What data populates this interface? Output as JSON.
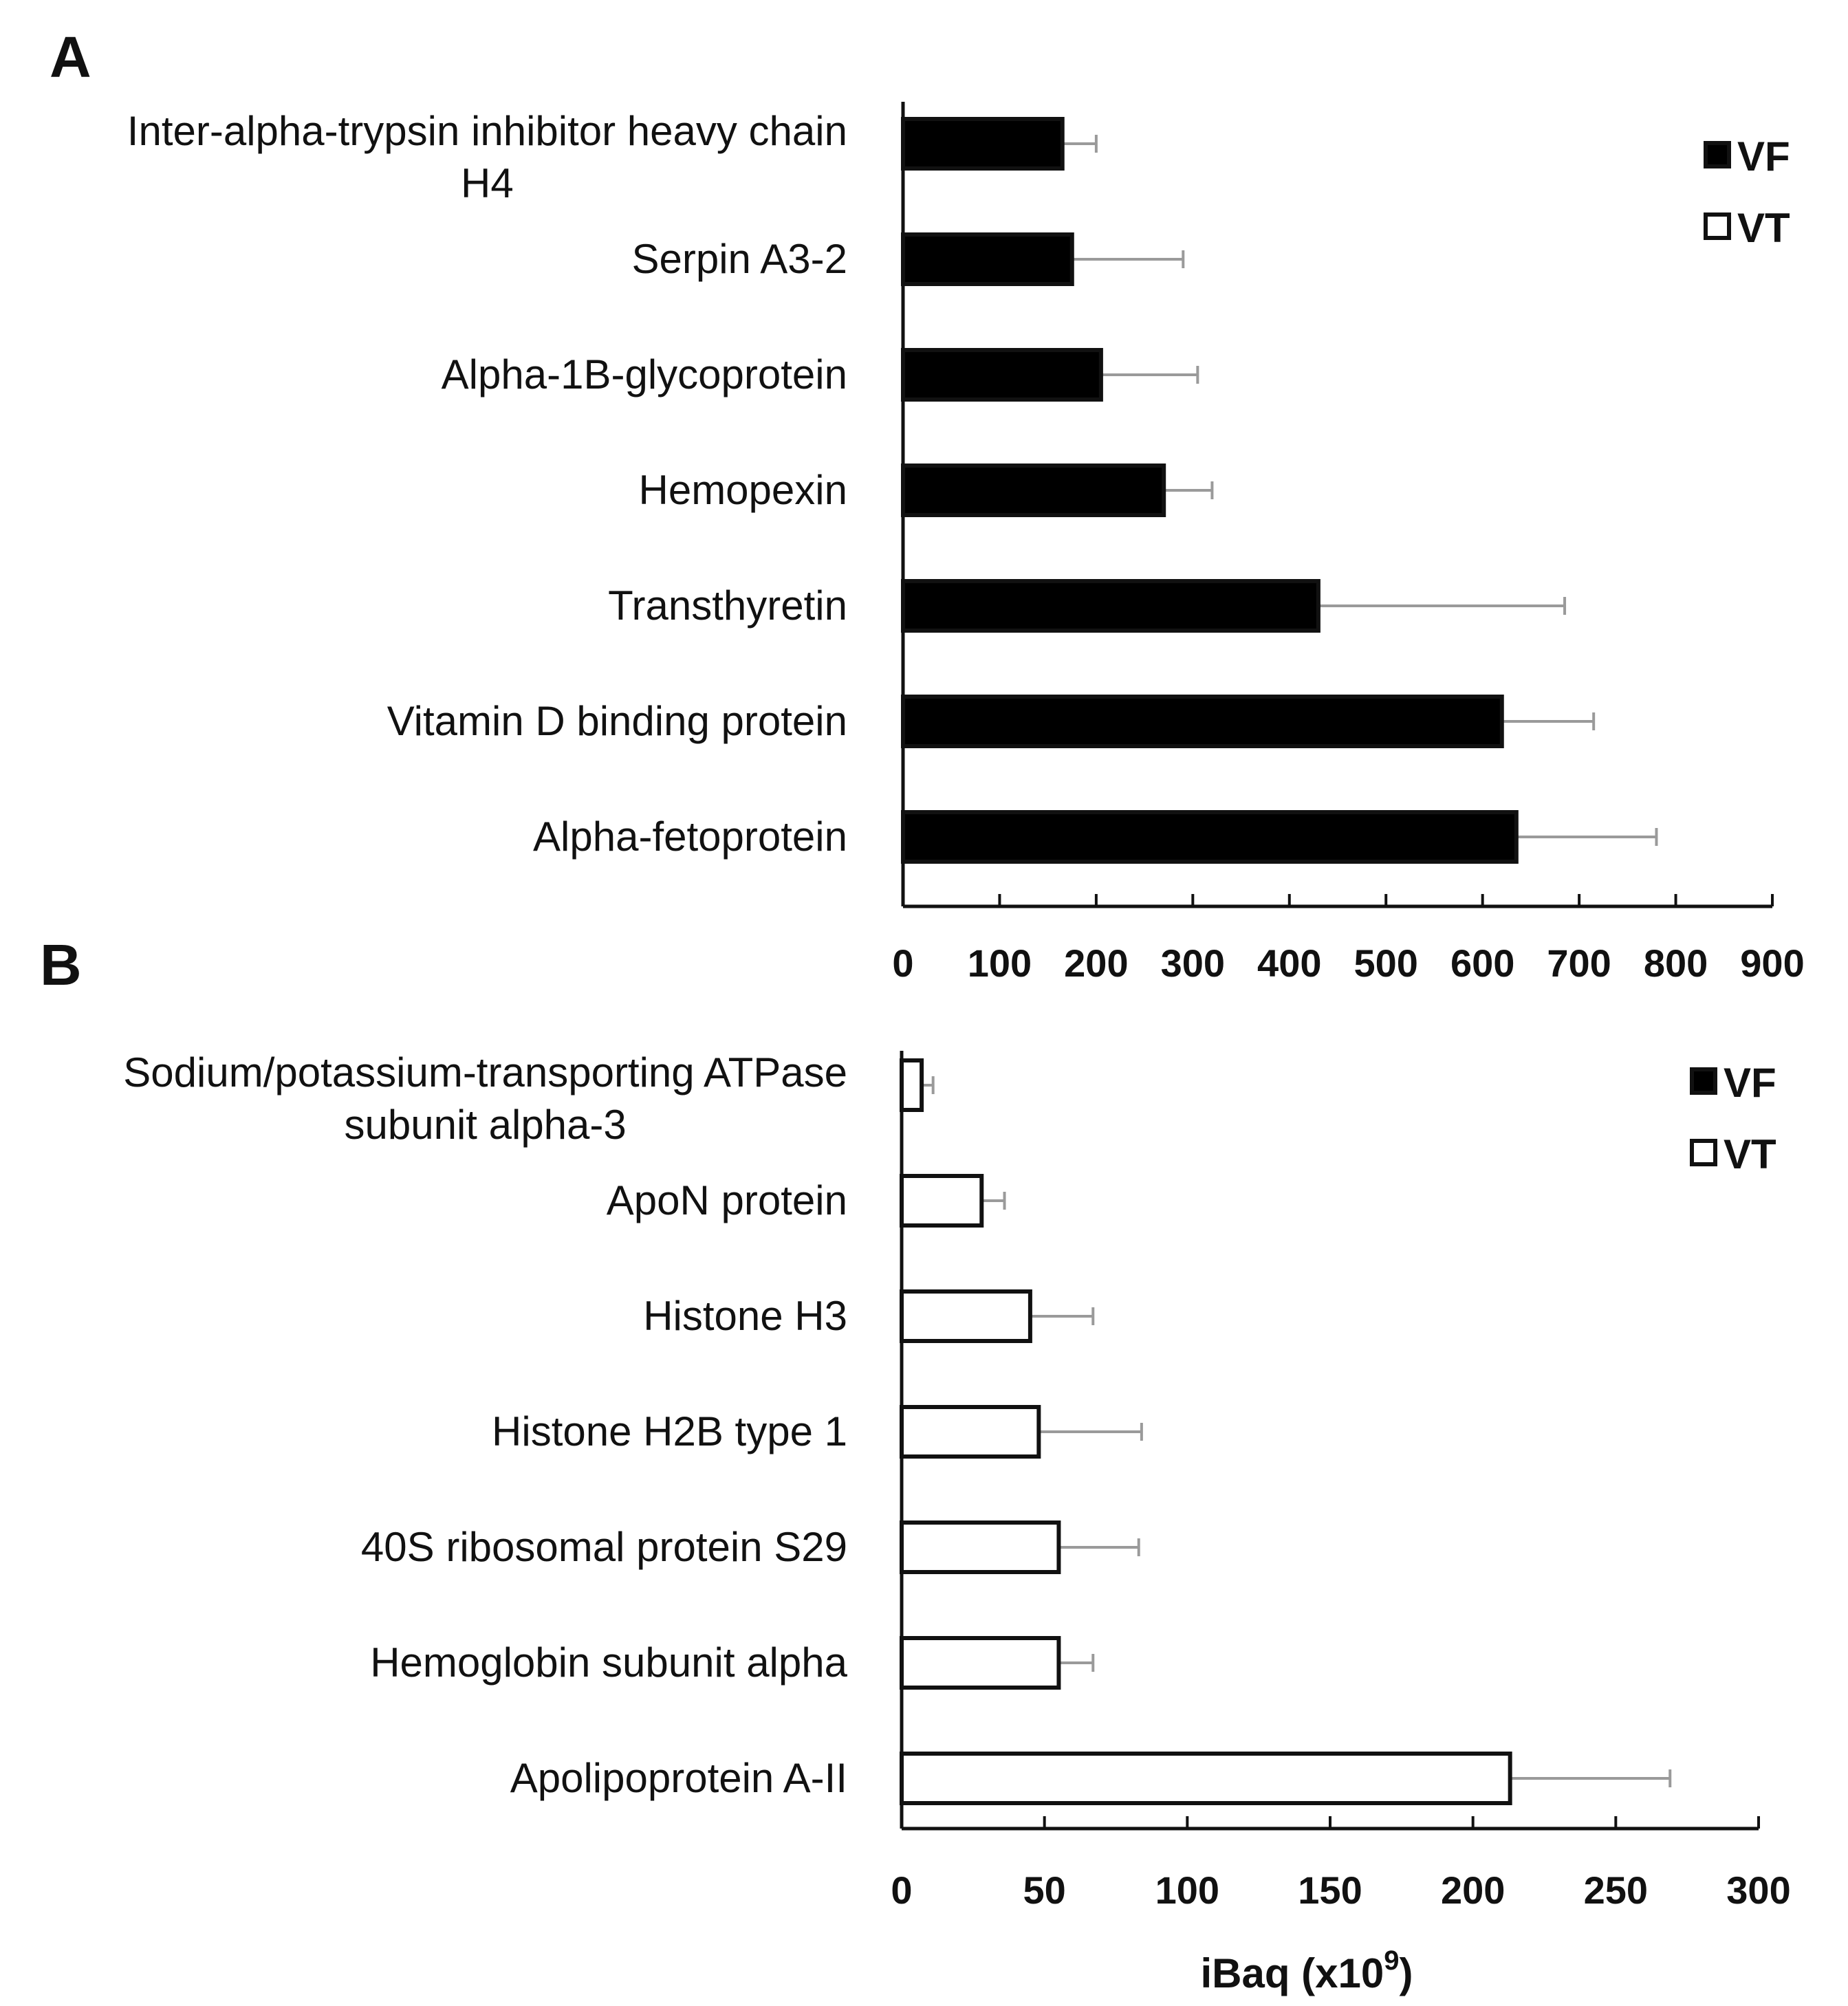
{
  "chart_data": [
    {
      "panel": "A",
      "type": "bar",
      "orientation": "horizontal",
      "categories": [
        [
          "Inter-alpha-trypsin inhibitor heavy chain",
          "H4"
        ],
        [
          "Serpin A3-2"
        ],
        [
          "Alpha-1B-glycoprotein"
        ],
        [
          "Hemopexin"
        ],
        [
          "Transthyretin"
        ],
        [
          "Vitamin D binding protein"
        ],
        [
          "Alpha-fetoprotein"
        ]
      ],
      "series": [
        {
          "name": "VF",
          "fill": "#000000",
          "values": [
            165,
            175,
            205,
            270,
            430,
            620,
            635
          ],
          "errors": [
            35,
            115,
            100,
            50,
            255,
            95,
            145
          ]
        }
      ],
      "xlim": [
        0,
        900
      ],
      "ticks": [
        0,
        100,
        200,
        300,
        400,
        500,
        600,
        700,
        800,
        900
      ],
      "legend": [
        {
          "label": "VF",
          "fill": "#000000"
        },
        {
          "label": "VT",
          "fill": "#ffffff"
        }
      ],
      "legend_position": "top-right",
      "xlabel": ""
    },
    {
      "panel": "B",
      "type": "bar",
      "orientation": "horizontal",
      "categories": [
        [
          "Sodium/potassium-transporting ATPase",
          "subunit alpha-3"
        ],
        [
          "ApoN protein"
        ],
        [
          "Histone H3"
        ],
        [
          "Histone H2B type 1"
        ],
        [
          "40S ribosomal protein S29"
        ],
        [
          "Hemoglobin subunit alpha"
        ],
        [
          "Apolipoprotein A-II"
        ]
      ],
      "series": [
        {
          "name": "VT",
          "fill": "#ffffff",
          "values": [
            7,
            28,
            45,
            48,
            55,
            55,
            213
          ],
          "errors": [
            4,
            8,
            22,
            36,
            28,
            12,
            56
          ]
        }
      ],
      "xlim": [
        0,
        300
      ],
      "ticks": [
        0,
        50,
        100,
        150,
        200,
        250,
        300
      ],
      "legend": [
        {
          "label": "VF",
          "fill": "#000000"
        },
        {
          "label": "VT",
          "fill": "#ffffff"
        }
      ],
      "legend_position": "top-right",
      "xlabel": "iBaq (x10",
      "xlabel_sup": "9",
      "xlabel_suffix": ")"
    }
  ]
}
